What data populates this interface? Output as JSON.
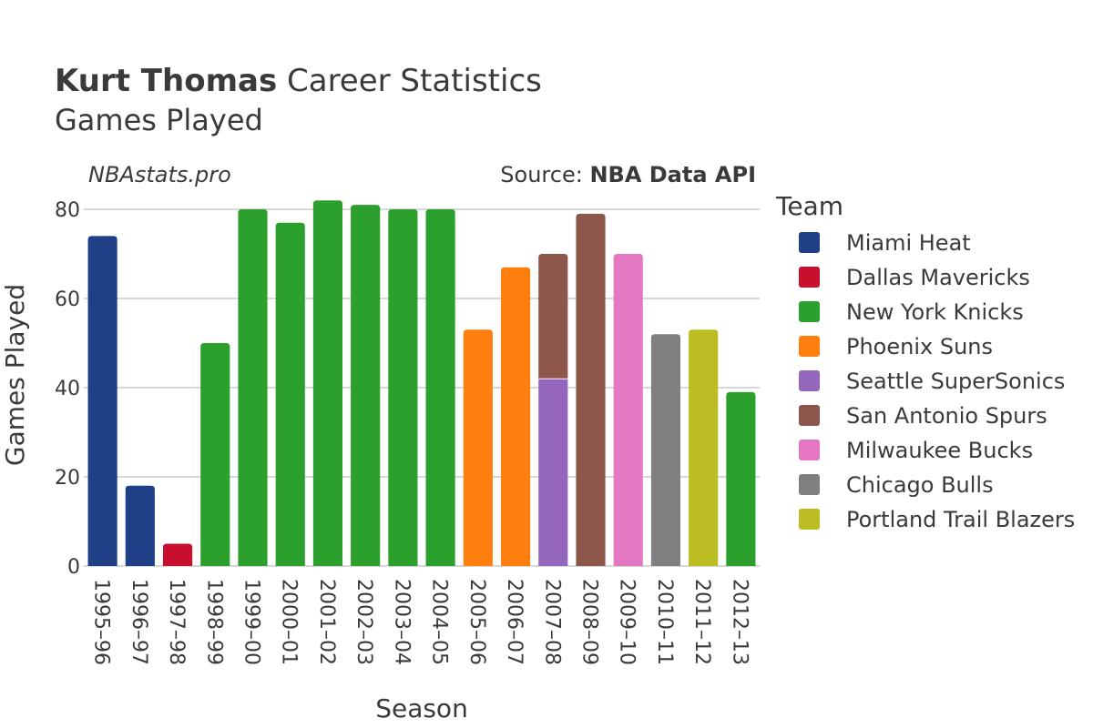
{
  "title": {
    "player": "Kurt Thomas",
    "rest": " Career Statistics",
    "subtitle": "Games Played"
  },
  "watermark": "NBAstats.pro",
  "source": {
    "prefix": "Source: ",
    "name": "NBA Data API"
  },
  "legend": {
    "title": "Team"
  },
  "teams": [
    {
      "name": "Miami Heat",
      "color": "#1f3f87"
    },
    {
      "name": "Dallas Mavericks",
      "color": "#c8102e"
    },
    {
      "name": "New York Knicks",
      "color": "#2ca02c"
    },
    {
      "name": "Phoenix Suns",
      "color": "#ff7f0e"
    },
    {
      "name": "Seattle SuperSonics",
      "color": "#9467bd"
    },
    {
      "name": "San Antonio Spurs",
      "color": "#8c564b"
    },
    {
      "name": "Milwaukee Bucks",
      "color": "#e377c2"
    },
    {
      "name": "Chicago Bulls",
      "color": "#7f7f7f"
    },
    {
      "name": "Portland Trail Blazers",
      "color": "#bcbd22"
    }
  ],
  "chart_data": {
    "type": "bar",
    "stacked": true,
    "xlabel": "Season",
    "ylabel": "Games Played",
    "ylim": [
      0,
      82
    ],
    "yticks": [
      0,
      20,
      40,
      60,
      80
    ],
    "grid": true,
    "legend_position": "right",
    "categories": [
      "1995–96",
      "1996–97",
      "1997–98",
      "1998–99",
      "1999–00",
      "2000–01",
      "2001–02",
      "2002–03",
      "2003–04",
      "2004–05",
      "2005–06",
      "2006–07",
      "2007–08",
      "2008–09",
      "2009–10",
      "2010–11",
      "2011–12",
      "2012–13"
    ],
    "series": [
      {
        "name": "Miami Heat",
        "values": [
          74,
          18,
          0,
          0,
          0,
          0,
          0,
          0,
          0,
          0,
          0,
          0,
          0,
          0,
          0,
          0,
          0,
          0
        ]
      },
      {
        "name": "Dallas Mavericks",
        "values": [
          0,
          0,
          5,
          0,
          0,
          0,
          0,
          0,
          0,
          0,
          0,
          0,
          0,
          0,
          0,
          0,
          0,
          0
        ]
      },
      {
        "name": "New York Knicks",
        "values": [
          0,
          0,
          0,
          50,
          80,
          77,
          82,
          81,
          80,
          80,
          0,
          0,
          0,
          0,
          0,
          0,
          0,
          39
        ]
      },
      {
        "name": "Phoenix Suns",
        "values": [
          0,
          0,
          0,
          0,
          0,
          0,
          0,
          0,
          0,
          0,
          53,
          67,
          0,
          0,
          0,
          0,
          0,
          0
        ]
      },
      {
        "name": "Seattle SuperSonics",
        "values": [
          0,
          0,
          0,
          0,
          0,
          0,
          0,
          0,
          0,
          0,
          0,
          0,
          42,
          0,
          0,
          0,
          0,
          0
        ]
      },
      {
        "name": "San Antonio Spurs",
        "values": [
          0,
          0,
          0,
          0,
          0,
          0,
          0,
          0,
          0,
          0,
          0,
          0,
          28,
          79,
          0,
          0,
          0,
          0
        ]
      },
      {
        "name": "Milwaukee Bucks",
        "values": [
          0,
          0,
          0,
          0,
          0,
          0,
          0,
          0,
          0,
          0,
          0,
          0,
          0,
          0,
          70,
          0,
          0,
          0
        ]
      },
      {
        "name": "Chicago Bulls",
        "values": [
          0,
          0,
          0,
          0,
          0,
          0,
          0,
          0,
          0,
          0,
          0,
          0,
          0,
          0,
          0,
          52,
          0,
          0
        ]
      },
      {
        "name": "Portland Trail Blazers",
        "values": [
          0,
          0,
          0,
          0,
          0,
          0,
          0,
          0,
          0,
          0,
          0,
          0,
          0,
          0,
          0,
          0,
          53,
          0
        ]
      }
    ]
  }
}
